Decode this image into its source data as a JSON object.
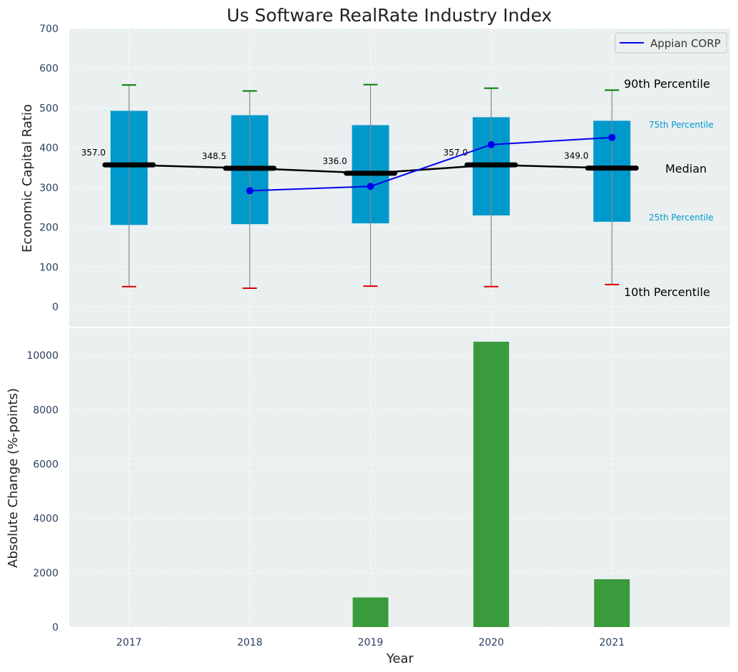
{
  "chart_data": [
    {
      "type": "box",
      "title": "Us Software RealRate Industry Index",
      "ylabel": "Economic Capital Ratio",
      "ylim": [
        -50,
        700
      ],
      "yticks": [
        0,
        100,
        200,
        300,
        400,
        500,
        600,
        700
      ],
      "grid": true,
      "legend": {
        "position": "top-right",
        "entries": [
          {
            "label": "Appian CORP",
            "color": "#0000ee"
          }
        ]
      },
      "categories": [
        "2017",
        "2018",
        "2019",
        "2020",
        "2021"
      ],
      "p10": [
        51,
        47,
        52,
        51,
        56
      ],
      "p25": [
        206,
        208,
        210,
        230,
        214
      ],
      "median": [
        357.0,
        348.5,
        336.0,
        357.0,
        349.0
      ],
      "median_labels": [
        "357.0",
        "348.5",
        "336.0",
        "357.0",
        "349.0"
      ],
      "p75": [
        493,
        482,
        457,
        477,
        468
      ],
      "p90": [
        558,
        543,
        559,
        550,
        545
      ],
      "series": [
        {
          "name": "Appian CORP",
          "values": [
            null,
            292,
            303,
            408,
            426
          ],
          "color": "#0000ee"
        }
      ],
      "annotations": {
        "p90": "90th Percentile",
        "p75": "75th Percentile",
        "median": "Median",
        "p25": "25th Percentile",
        "p10": "10th Percentile"
      },
      "colors": {
        "box": "#0099cc",
        "p90_cap": "#008000",
        "p10_cap": "#dd0000",
        "median": "#000000",
        "background": "#eaeff0"
      }
    },
    {
      "type": "bar",
      "xlabel": "Year",
      "ylabel": "Absolute Change (%-points)",
      "ylim": [
        0,
        11000
      ],
      "yticks": [
        0,
        2000,
        4000,
        6000,
        8000,
        10000
      ],
      "categories": [
        "2017",
        "2018",
        "2019",
        "2020",
        "2021"
      ],
      "values": [
        null,
        null,
        1090,
        10500,
        1760
      ],
      "color": "#3a9b3c"
    }
  ]
}
